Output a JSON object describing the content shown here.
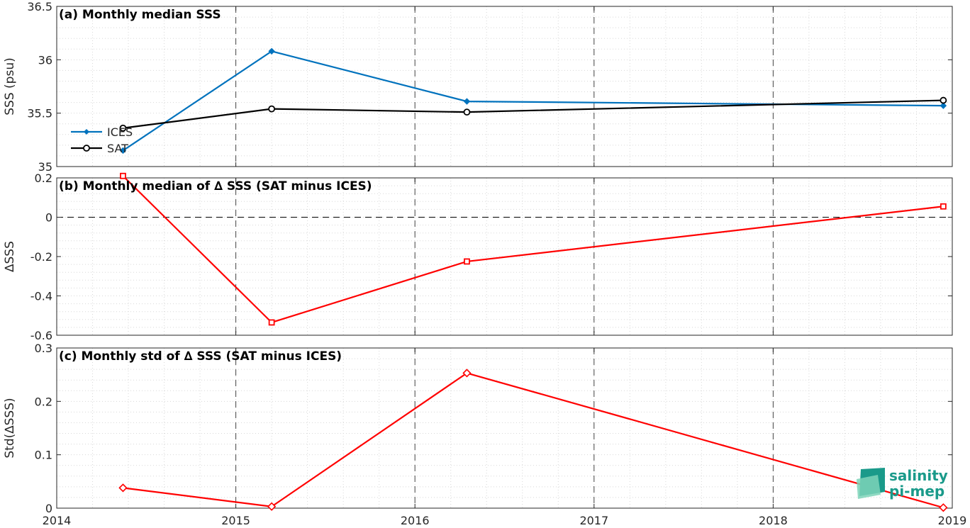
{
  "chart_data": [
    {
      "type": "line",
      "title": "(a) Monthly median SSS",
      "ylabel": "SSS (psu)",
      "xlim": [
        2014,
        2019
      ],
      "ylim": [
        35,
        36.5
      ],
      "yticks": [
        "35",
        "35.5",
        "36",
        "36.5"
      ],
      "grid": true,
      "legend": "bottom-left",
      "series": [
        {
          "name": "ICES",
          "color": "#0072BD",
          "marker": "diamond-filled",
          "x": [
            2014.37,
            2015.2,
            2016.29,
            2018.95
          ],
          "y": [
            35.15,
            36.08,
            35.61,
            35.57
          ]
        },
        {
          "name": "SAT",
          "color": "#000000",
          "marker": "circle",
          "x": [
            2014.37,
            2015.2,
            2016.29,
            2018.95
          ],
          "y": [
            35.36,
            35.54,
            35.51,
            35.62
          ]
        }
      ]
    },
    {
      "type": "line",
      "title": "(b) Monthly median of ∆ SSS (SAT minus ICES)",
      "ylabel": "∆SSS",
      "xlim": [
        2014,
        2019
      ],
      "ylim": [
        -0.6,
        0.2
      ],
      "yticks": [
        "-0.6",
        "-0.4",
        "-0.2",
        "0",
        "0.2"
      ],
      "grid": true,
      "zero_line": true,
      "series": [
        {
          "color": "#FF0000",
          "marker": "square",
          "x": [
            2014.37,
            2015.2,
            2016.29,
            2018.95
          ],
          "y": [
            0.21,
            -0.535,
            -0.225,
            0.055
          ]
        }
      ]
    },
    {
      "type": "line",
      "title": "(c) Monthly std of ∆ SSS (SAT minus ICES)",
      "ylabel": "Std(∆SSS)",
      "xlim": [
        2014,
        2019
      ],
      "ylim": [
        0,
        0.3
      ],
      "yticks": [
        "0",
        "0.1",
        "0.2",
        "0.3"
      ],
      "xticks": [
        "2014",
        "2015",
        "2016",
        "2017",
        "2018",
        "2019"
      ],
      "grid": true,
      "series": [
        {
          "color": "#FF0000",
          "marker": "diamond",
          "x": [
            2014.37,
            2015.2,
            2016.29,
            2018.95
          ],
          "y": [
            0.038,
            0.003,
            0.253,
            0.001
          ]
        }
      ]
    }
  ],
  "logo": {
    "line1": "salinity",
    "line2": "pi-mep",
    "color": "#1a9a8a"
  }
}
